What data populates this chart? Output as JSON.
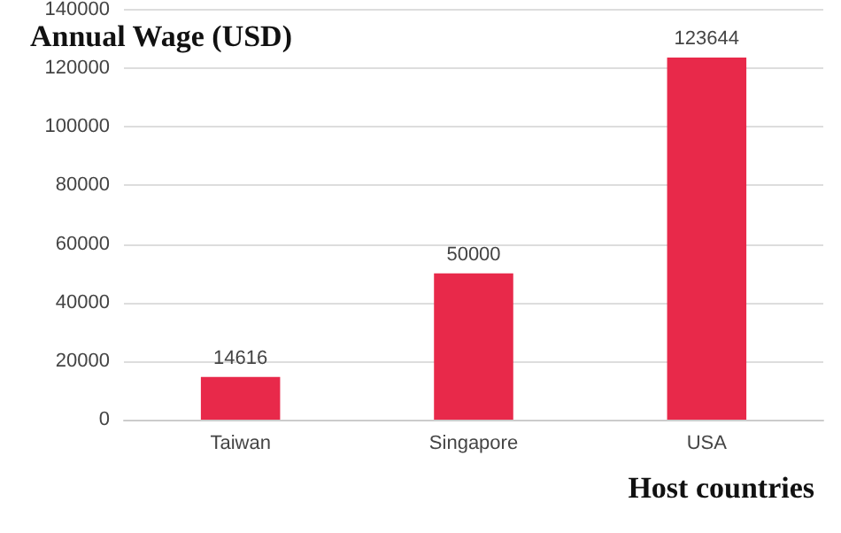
{
  "chart_data": {
    "type": "bar",
    "title": "Annual Wage (USD)",
    "xlabel": "Host countries",
    "categories": [
      "Taiwan",
      "Singapore",
      "USA"
    ],
    "values": [
      14616,
      50000,
      123644
    ],
    "color": "#e8294a",
    "ylim": [
      0,
      140000
    ],
    "yticks": [
      0,
      20000,
      40000,
      60000,
      80000,
      100000,
      120000,
      140000
    ],
    "grid": "y",
    "data_labels": true
  }
}
